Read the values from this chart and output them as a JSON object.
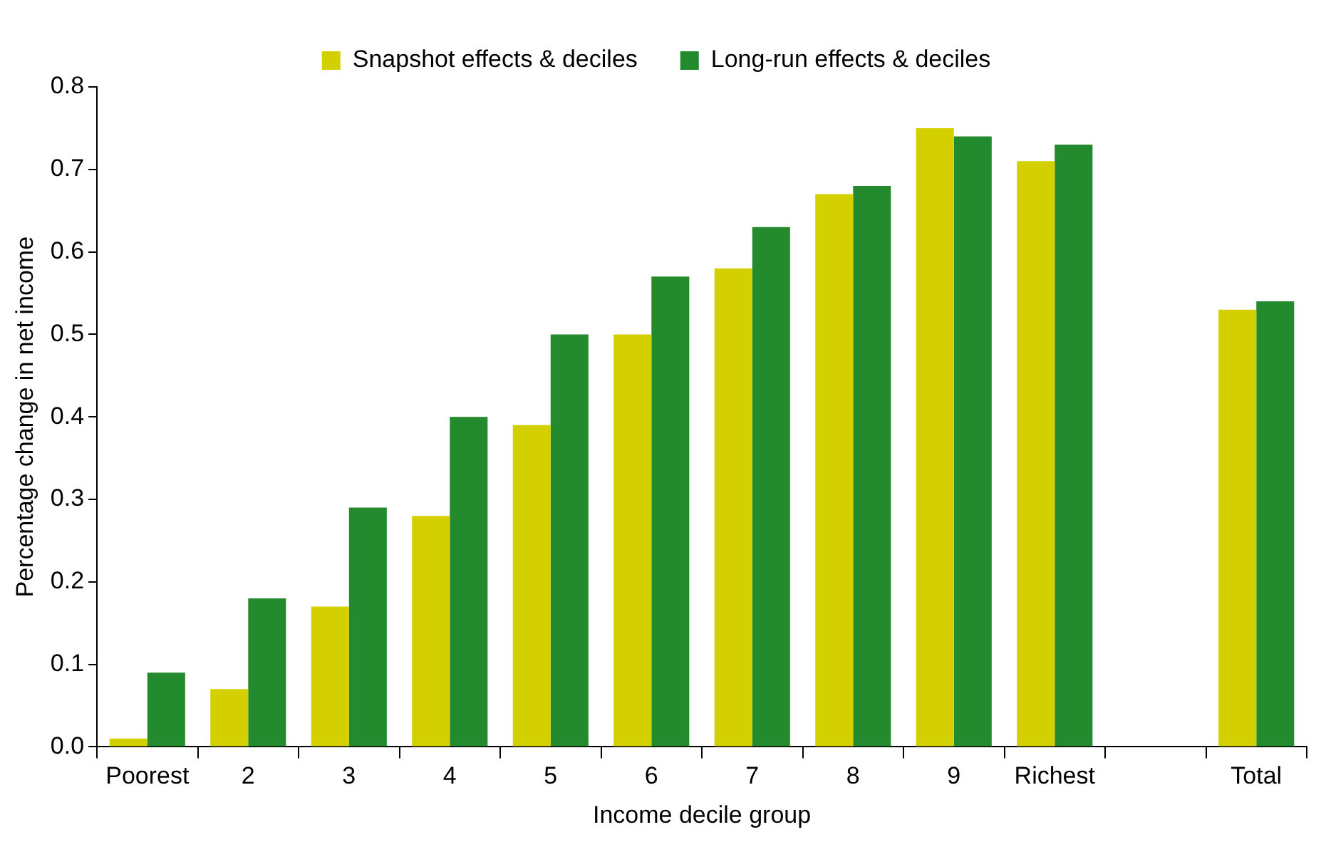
{
  "chart_data": {
    "type": "bar",
    "xlabel": "Income decile group",
    "ylabel": "Percentage change in net income",
    "categories": [
      "Poorest",
      "2",
      "3",
      "4",
      "5",
      "6",
      "7",
      "8",
      "9",
      "Richest",
      null,
      "Total"
    ],
    "series": [
      {
        "name": "Snapshot effects & deciles",
        "color": "#d4d000",
        "values": [
          0.01,
          0.07,
          0.17,
          0.28,
          0.39,
          0.5,
          0.58,
          0.67,
          0.75,
          0.71,
          null,
          0.53
        ]
      },
      {
        "name": "Long-run effects & deciles",
        "color": "#248a2e",
        "values": [
          0.09,
          0.18,
          0.29,
          0.4,
          0.5,
          0.57,
          0.63,
          0.68,
          0.74,
          0.73,
          null,
          0.54
        ]
      }
    ],
    "ylim": [
      0,
      0.8
    ],
    "yticks": [
      {
        "value": 0,
        "label": "0.0"
      },
      0.1,
      0.2,
      0.3,
      0.4,
      0.5,
      0.6,
      0.7,
      0.8
    ],
    "legend": "top"
  }
}
